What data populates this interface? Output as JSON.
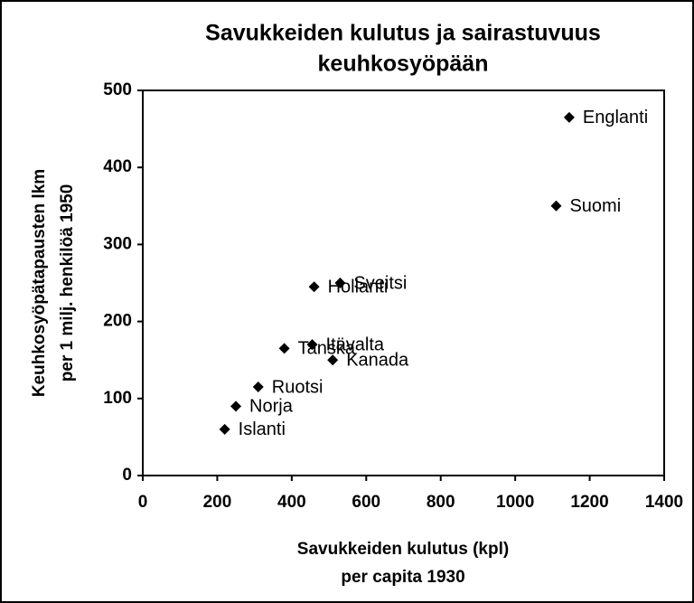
{
  "chart_data": {
    "type": "scatter",
    "title": [
      "Savukkeiden kulutus ja sairastuvuus",
      "keuhkosyöpään"
    ],
    "x_label": [
      "Savukkeiden kulutus (kpl)",
      "per capita 1930"
    ],
    "y_label": [
      "Keuhkosyöpätapausten lkm",
      "per 1 milj. henkilöä 1950"
    ],
    "labels": [
      "Englanti",
      "Suomi",
      "Sveitsi",
      "Hollanti",
      "Itävalta",
      "Tanska",
      "Kanada",
      "Ruotsi",
      "Norja",
      "Islanti"
    ],
    "x": [
      1145,
      1110,
      530,
      460,
      455,
      380,
      510,
      310,
      250,
      220
    ],
    "values": [
      465,
      350,
      250,
      245,
      170,
      165,
      150,
      115,
      90,
      60
    ],
    "color": "#000000",
    "xlim": [
      0,
      1400
    ],
    "xticks": [
      0,
      200,
      400,
      600,
      800,
      1000,
      1200,
      1400
    ],
    "ylim": [
      0,
      500
    ],
    "yticks": [
      0,
      100,
      200,
      300,
      400,
      500
    ],
    "grid": false
  }
}
